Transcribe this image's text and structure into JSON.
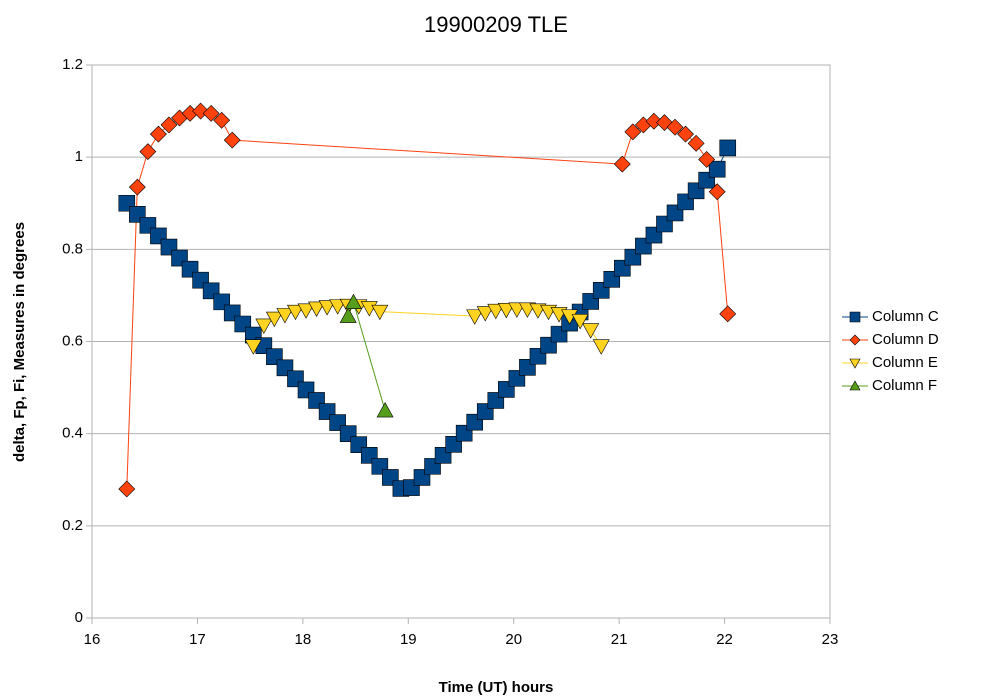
{
  "chart_data": {
    "type": "scatter",
    "title": "19900209 TLE",
    "x_label": "Time (UT) hours",
    "y_label": "delta, Fp, Fi, Measures in degrees",
    "xlim": [
      16,
      23
    ],
    "xticks": [
      16,
      17,
      18,
      19,
      20,
      21,
      22,
      23
    ],
    "ylim": [
      0,
      1.2
    ],
    "yticks": [
      0,
      0.2,
      0.4,
      0.6,
      0.8,
      1,
      1.2
    ],
    "grid": true,
    "legend": "right",
    "series": [
      {
        "name": "Column C",
        "color": "#004586",
        "marker": "square",
        "x": [
          16.33,
          16.43,
          16.53,
          16.63,
          16.73,
          16.83,
          16.93,
          17.03,
          17.13,
          17.23,
          17.33,
          17.43,
          17.53,
          17.63,
          17.73,
          17.83,
          17.93,
          18.03,
          18.13,
          18.23,
          18.33,
          18.43,
          18.53,
          18.63,
          18.73,
          18.83,
          18.93,
          19.03,
          19.13,
          19.23,
          19.33,
          19.43,
          19.53,
          19.63,
          19.73,
          19.83,
          19.93,
          20.03,
          20.13,
          20.23,
          20.33,
          20.43,
          20.53,
          20.63,
          20.73,
          20.83,
          20.93,
          21.03,
          21.13,
          21.23,
          21.33,
          21.43,
          21.53,
          21.63,
          21.73,
          21.83,
          21.93,
          22.03
        ],
        "values": [
          0.9,
          0.876,
          0.852,
          0.829,
          0.805,
          0.781,
          0.757,
          0.733,
          0.71,
          0.686,
          0.662,
          0.638,
          0.614,
          0.591,
          0.567,
          0.543,
          0.519,
          0.495,
          0.472,
          0.448,
          0.424,
          0.4,
          0.376,
          0.353,
          0.329,
          0.305,
          0.281,
          0.283,
          0.305,
          0.329,
          0.353,
          0.377,
          0.401,
          0.425,
          0.448,
          0.472,
          0.496,
          0.52,
          0.544,
          0.568,
          0.592,
          0.616,
          0.64,
          0.664,
          0.687,
          0.711,
          0.735,
          0.759,
          0.783,
          0.807,
          0.831,
          0.855,
          0.879,
          0.903,
          0.927,
          0.95,
          0.974,
          1.02
        ]
      },
      {
        "name": "Column D",
        "color": "#ff420e",
        "marker": "diamond",
        "x": [
          16.33,
          16.43,
          16.53,
          16.63,
          16.73,
          16.83,
          16.93,
          17.03,
          17.13,
          17.23,
          17.33,
          21.03,
          21.13,
          21.23,
          21.33,
          21.43,
          21.53,
          21.63,
          21.73,
          21.83,
          21.93,
          22.03
        ],
        "values": [
          0.28,
          0.935,
          1.012,
          1.05,
          1.07,
          1.085,
          1.095,
          1.1,
          1.095,
          1.08,
          1.037,
          0.985,
          1.055,
          1.07,
          1.078,
          1.075,
          1.065,
          1.05,
          1.03,
          0.995,
          0.925,
          0.66
        ]
      },
      {
        "name": "Column E",
        "color": "#ffd320",
        "marker": "triangle-down",
        "x": [
          17.53,
          17.63,
          17.73,
          17.83,
          17.93,
          18.03,
          18.13,
          18.23,
          18.33,
          18.43,
          18.53,
          18.63,
          18.73,
          19.63,
          19.73,
          19.83,
          19.93,
          20.03,
          20.13,
          20.23,
          20.33,
          20.43,
          20.53,
          20.63,
          20.73,
          20.83
        ],
        "values": [
          0.59,
          0.635,
          0.65,
          0.658,
          0.665,
          0.668,
          0.672,
          0.675,
          0.677,
          0.678,
          0.677,
          0.673,
          0.665,
          0.655,
          0.662,
          0.667,
          0.669,
          0.67,
          0.67,
          0.668,
          0.665,
          0.66,
          0.655,
          0.645,
          0.625,
          0.59
        ]
      },
      {
        "name": "Column F",
        "color": "#579d1c",
        "marker": "triangle-up",
        "x": [
          18.43,
          18.48,
          18.78
        ],
        "values": [
          0.655,
          0.685,
          0.45
        ]
      }
    ]
  }
}
